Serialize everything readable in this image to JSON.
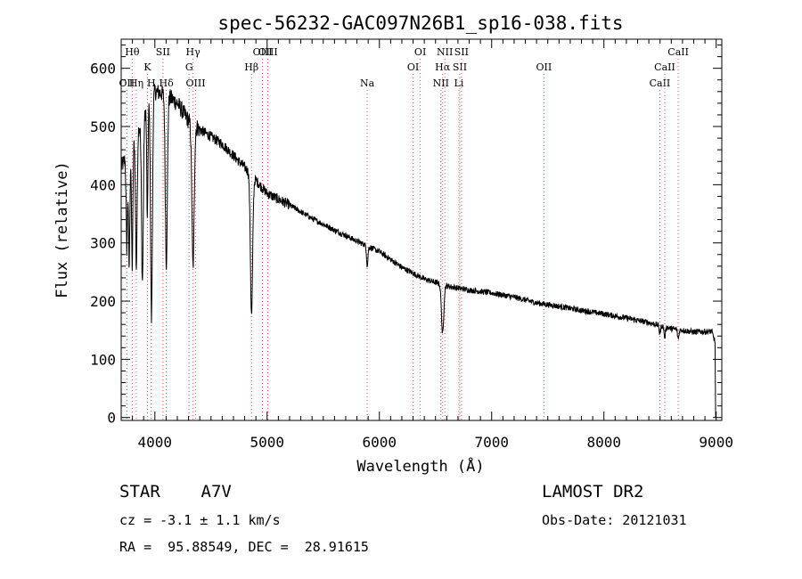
{
  "chart_data": {
    "type": "line",
    "title": "spec-56232-GAC097N26B1_sp16-038.fits",
    "xlabel": "Wavelength (Å)",
    "ylabel": "Flux (relative)",
    "xlim": [
      3700,
      9050
    ],
    "ylim": [
      -5,
      650
    ],
    "x_ticks": [
      4000,
      5000,
      6000,
      7000,
      8000,
      9000
    ],
    "y_ticks": [
      0,
      100,
      200,
      300,
      400,
      500,
      600
    ],
    "grid": false,
    "continuum": [
      {
        "x": 3700,
        "y": 430
      },
      {
        "x": 3800,
        "y": 470
      },
      {
        "x": 3900,
        "y": 520
      },
      {
        "x": 4000,
        "y": 560
      },
      {
        "x": 4100,
        "y": 555
      },
      {
        "x": 4200,
        "y": 540
      },
      {
        "x": 4300,
        "y": 510
      },
      {
        "x": 4400,
        "y": 495
      },
      {
        "x": 4600,
        "y": 470
      },
      {
        "x": 4800,
        "y": 430
      },
      {
        "x": 5000,
        "y": 385
      },
      {
        "x": 5200,
        "y": 365
      },
      {
        "x": 5400,
        "y": 342
      },
      {
        "x": 5600,
        "y": 322
      },
      {
        "x": 5800,
        "y": 303
      },
      {
        "x": 6000,
        "y": 285
      },
      {
        "x": 6200,
        "y": 258
      },
      {
        "x": 6400,
        "y": 238
      },
      {
        "x": 6600,
        "y": 226
      },
      {
        "x": 6800,
        "y": 219
      },
      {
        "x": 7000,
        "y": 214
      },
      {
        "x": 7200,
        "y": 207
      },
      {
        "x": 7400,
        "y": 197
      },
      {
        "x": 7600,
        "y": 191
      },
      {
        "x": 7800,
        "y": 184
      },
      {
        "x": 8000,
        "y": 178
      },
      {
        "x": 8200,
        "y": 171
      },
      {
        "x": 8400,
        "y": 163
      },
      {
        "x": 8600,
        "y": 153
      },
      {
        "x": 8800,
        "y": 147
      },
      {
        "x": 8960,
        "y": 148
      },
      {
        "x": 8990,
        "y": 130
      }
    ],
    "absorption_features": [
      {
        "x": 3750,
        "depth": 160,
        "width": 6
      },
      {
        "x": 3771,
        "depth": 200,
        "width": 6
      },
      {
        "x": 3798,
        "depth": 210,
        "width": 6
      },
      {
        "x": 3835,
        "depth": 230,
        "width": 7
      },
      {
        "x": 3889,
        "depth": 280,
        "width": 8
      },
      {
        "x": 3933,
        "depth": 200,
        "width": 5
      },
      {
        "x": 3970,
        "depth": 380,
        "width": 8
      },
      {
        "x": 4102,
        "depth": 290,
        "width": 9
      },
      {
        "x": 4340,
        "depth": 245,
        "width": 10
      },
      {
        "x": 4861,
        "depth": 240,
        "width": 10
      },
      {
        "x": 5892,
        "depth": 35,
        "width": 6
      },
      {
        "x": 6563,
        "depth": 85,
        "width": 10
      },
      {
        "x": 8498,
        "depth": 14,
        "width": 6
      },
      {
        "x": 8542,
        "depth": 18,
        "width": 6
      },
      {
        "x": 8662,
        "depth": 16,
        "width": 6
      }
    ],
    "line_markers": [
      {
        "x": 3750,
        "label": "OII",
        "row": 3
      },
      {
        "x": 3798,
        "label": "Hθ",
        "row": 1
      },
      {
        "x": 3835,
        "label": "Hη",
        "row": 3
      },
      {
        "x": 3934,
        "label": "K",
        "row": 2
      },
      {
        "x": 3968,
        "label": "H",
        "row": 3
      },
      {
        "x": 4072,
        "label": "SII",
        "row": 1
      },
      {
        "x": 4102,
        "label": "Hδ",
        "row": 3
      },
      {
        "x": 4305,
        "label": "G",
        "row": 2
      },
      {
        "x": 4340,
        "label": "Hγ",
        "row": 1
      },
      {
        "x": 4363,
        "label": "OIII",
        "row": 3
      },
      {
        "x": 4861,
        "label": "Hβ",
        "row": 2
      },
      {
        "x": 4959,
        "label": "OIII",
        "row": 1
      },
      {
        "x": 5007,
        "label": "OIII",
        "row": 1
      },
      {
        "x": 5892,
        "label": "Na",
        "row": 3
      },
      {
        "x": 6300,
        "label": "OI",
        "row": 2
      },
      {
        "x": 6364,
        "label": "OI",
        "row": 1
      },
      {
        "x": 6548,
        "label": "NII",
        "row": 3
      },
      {
        "x": 6563,
        "label": "Hα",
        "row": 2
      },
      {
        "x": 6583,
        "label": "NII",
        "row": 1
      },
      {
        "x": 6716,
        "label": "SII",
        "row": 2
      },
      {
        "x": 6708,
        "label": "Li",
        "row": 3
      },
      {
        "x": 6731,
        "label": "SII",
        "row": 1
      },
      {
        "x": 7465,
        "label": "OII",
        "row": 2
      },
      {
        "x": 8498,
        "label": "CaII",
        "row": 3
      },
      {
        "x": 8542,
        "label": "CaII",
        "row": 2
      },
      {
        "x": 8662,
        "label": "CaII",
        "row": 1
      }
    ],
    "noise_amplitude": 5
  },
  "info": {
    "object_line": "STAR    A7V",
    "survey": "LAMOST DR2",
    "cz_line": "cz = -3.1 ± 1.1 km/s",
    "obs_date": "Obs-Date: 20121031",
    "radec_line": "RA =  95.88549, DEC =  28.91615"
  }
}
